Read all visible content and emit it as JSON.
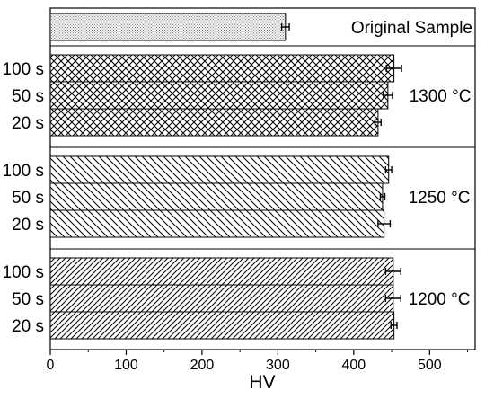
{
  "chart_data": {
    "type": "bar",
    "orientation": "horizontal",
    "xlabel": "HV",
    "xlim": [
      0,
      560
    ],
    "xticks": [
      0,
      100,
      200,
      300,
      400,
      500
    ],
    "groups": [
      {
        "label": "Original Sample",
        "pattern": "dots",
        "bars": [
          {
            "label": "",
            "value": 310,
            "error": 5
          }
        ]
      },
      {
        "label": "1300 °C",
        "pattern": "crosshatch",
        "bars": [
          {
            "label": "100 s",
            "value": 453,
            "error": 10
          },
          {
            "label": "50 s",
            "value": 445,
            "error": 6
          },
          {
            "label": "20 s",
            "value": 432,
            "error": 4
          }
        ]
      },
      {
        "label": "1250 °C",
        "pattern": "backslash",
        "bars": [
          {
            "label": "100 s",
            "value": 446,
            "error": 4
          },
          {
            "label": "50 s",
            "value": 438,
            "error": 3
          },
          {
            "label": "20 s",
            "value": 440,
            "error": 8
          }
        ]
      },
      {
        "label": "1200 °C",
        "pattern": "slash",
        "bars": [
          {
            "label": "100 s",
            "value": 452,
            "error": 10
          },
          {
            "label": "50 s",
            "value": 452,
            "error": 10
          },
          {
            "label": "20 s",
            "value": 453,
            "error": 4
          }
        ]
      }
    ]
  }
}
